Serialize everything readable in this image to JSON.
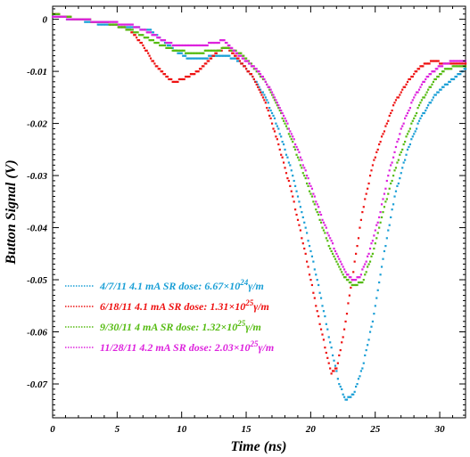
{
  "chart_data": {
    "type": "scatter",
    "title": "",
    "xlabel": "Time (ns)",
    "ylabel": "Button Signal (V)",
    "xlim": [
      0,
      32
    ],
    "ylim": [
      -0.0765,
      0.0025
    ],
    "x_ticks": [
      0,
      5,
      10,
      15,
      20,
      25,
      30
    ],
    "x_tick_labels": [
      "0",
      "5",
      "10",
      "15",
      "20",
      "25",
      "30"
    ],
    "y_ticks": [
      0,
      -0.01,
      -0.02,
      -0.03,
      -0.04,
      -0.05,
      -0.06,
      -0.07
    ],
    "y_tick_labels": [
      "0",
      "-0.01",
      "-0.02",
      "-0.03",
      "-0.04",
      "-0.05",
      "-0.06",
      "-0.07"
    ],
    "grid": false,
    "legend_position": "bottom-left",
    "series": [
      {
        "name": "4/7/11 4.1 mA  SR dose: 6.67×10^24 γ/m",
        "color": "#1a9fd6",
        "points": [
          [
            0,
            0.0005
          ],
          [
            2,
            0
          ],
          [
            4,
            -0.001
          ],
          [
            6,
            -0.0015
          ],
          [
            7.5,
            -0.002
          ],
          [
            8.5,
            -0.004
          ],
          [
            9.5,
            -0.006
          ],
          [
            10.5,
            -0.0075
          ],
          [
            11.5,
            -0.0075
          ],
          [
            12.5,
            -0.007
          ],
          [
            13.5,
            -0.007
          ],
          [
            14.5,
            -0.008
          ],
          [
            15.5,
            -0.011
          ],
          [
            16.5,
            -0.015
          ],
          [
            17.5,
            -0.021
          ],
          [
            18.5,
            -0.029
          ],
          [
            19.5,
            -0.039
          ],
          [
            20.5,
            -0.05
          ],
          [
            21.5,
            -0.062
          ],
          [
            22.2,
            -0.07
          ],
          [
            22.7,
            -0.073
          ],
          [
            23.3,
            -0.072
          ],
          [
            24,
            -0.067
          ],
          [
            24.8,
            -0.058
          ],
          [
            25.6,
            -0.046
          ],
          [
            26.5,
            -0.034
          ],
          [
            27.5,
            -0.025
          ],
          [
            28.5,
            -0.019
          ],
          [
            29.5,
            -0.015
          ],
          [
            30.5,
            -0.0125
          ],
          [
            31.5,
            -0.0105
          ],
          [
            32,
            -0.0095
          ]
        ]
      },
      {
        "name": "6/18/11 4.1 mA  SR dose: 1.31×10^25 γ/m",
        "color": "#ee1111",
        "points": [
          [
            0,
            0.001
          ],
          [
            2,
            0
          ],
          [
            4,
            -0.0005
          ],
          [
            6,
            -0.002
          ],
          [
            7,
            -0.005
          ],
          [
            8,
            -0.009
          ],
          [
            9,
            -0.0115
          ],
          [
            9.5,
            -0.012
          ],
          [
            10.5,
            -0.011
          ],
          [
            11.5,
            -0.0095
          ],
          [
            12.2,
            -0.0075
          ],
          [
            12.8,
            -0.006
          ],
          [
            13.5,
            -0.0055
          ],
          [
            14.5,
            -0.008
          ],
          [
            15.5,
            -0.011
          ],
          [
            16.5,
            -0.016
          ],
          [
            17.5,
            -0.024
          ],
          [
            18.5,
            -0.033
          ],
          [
            19.5,
            -0.044
          ],
          [
            20.5,
            -0.056
          ],
          [
            21.2,
            -0.064
          ],
          [
            21.6,
            -0.068
          ],
          [
            22,
            -0.067
          ],
          [
            22.5,
            -0.061
          ],
          [
            23.2,
            -0.05
          ],
          [
            24,
            -0.037
          ],
          [
            24.8,
            -0.028
          ],
          [
            25.6,
            -0.022
          ],
          [
            26.5,
            -0.016
          ],
          [
            27.5,
            -0.012
          ],
          [
            28.5,
            -0.009
          ],
          [
            29.5,
            -0.008
          ],
          [
            30.5,
            -0.0085
          ],
          [
            31.5,
            -0.0085
          ],
          [
            32,
            -0.0085
          ]
        ]
      },
      {
        "name": "9/30/11 4 mA  SR dose: 1.32×10^25 γ/m",
        "color": "#55bb11",
        "points": [
          [
            0,
            0.001
          ],
          [
            2,
            0
          ],
          [
            4,
            -0.0005
          ],
          [
            6,
            -0.002
          ],
          [
            8,
            -0.0045
          ],
          [
            9.5,
            -0.006
          ],
          [
            11,
            -0.0065
          ],
          [
            12.5,
            -0.006
          ],
          [
            13.5,
            -0.0055
          ],
          [
            14.5,
            -0.0065
          ],
          [
            15.5,
            -0.009
          ],
          [
            16.5,
            -0.012
          ],
          [
            17.5,
            -0.017
          ],
          [
            18.5,
            -0.023
          ],
          [
            19.5,
            -0.03
          ],
          [
            20.5,
            -0.037
          ],
          [
            21.5,
            -0.044
          ],
          [
            22.5,
            -0.049
          ],
          [
            23.3,
            -0.051
          ],
          [
            24,
            -0.0505
          ],
          [
            24.8,
            -0.045
          ],
          [
            25.6,
            -0.037
          ],
          [
            26.5,
            -0.029
          ],
          [
            27.5,
            -0.022
          ],
          [
            28.5,
            -0.016
          ],
          [
            29.5,
            -0.012
          ],
          [
            30.5,
            -0.0095
          ],
          [
            31.5,
            -0.009
          ],
          [
            32,
            -0.009
          ]
        ]
      },
      {
        "name": "11/28/11 4.2 mA  SR dose: 2.03×10^25 γ/m",
        "color": "#dd22dd",
        "points": [
          [
            0,
            0.0005
          ],
          [
            2,
            0
          ],
          [
            4,
            -0.0005
          ],
          [
            6,
            -0.001
          ],
          [
            7.5,
            -0.0025
          ],
          [
            8.5,
            -0.004
          ],
          [
            9.5,
            -0.005
          ],
          [
            10.5,
            -0.005
          ],
          [
            11.5,
            -0.005
          ],
          [
            12.5,
            -0.0045
          ],
          [
            13.3,
            -0.004
          ],
          [
            14,
            -0.006
          ],
          [
            15,
            -0.008
          ],
          [
            16,
            -0.01
          ],
          [
            17,
            -0.014
          ],
          [
            18,
            -0.019
          ],
          [
            19,
            -0.025
          ],
          [
            20,
            -0.032
          ],
          [
            21,
            -0.039
          ],
          [
            22,
            -0.045
          ],
          [
            22.8,
            -0.049
          ],
          [
            23.3,
            -0.05
          ],
          [
            23.8,
            -0.0495
          ],
          [
            24.5,
            -0.045
          ],
          [
            25.3,
            -0.038
          ],
          [
            26,
            -0.03
          ],
          [
            27,
            -0.021
          ],
          [
            28,
            -0.015
          ],
          [
            29,
            -0.011
          ],
          [
            30,
            -0.009
          ],
          [
            31,
            -0.008
          ],
          [
            32,
            -0.008
          ]
        ]
      }
    ],
    "legend": [
      {
        "date": "4/7/11",
        "current": "4.1 mA",
        "dose_mantissa": "6.67",
        "dose_exp": "24"
      },
      {
        "date": "6/18/11",
        "current": "4.1 mA",
        "dose_mantissa": "1.31",
        "dose_exp": "25"
      },
      {
        "date": "9/30/11",
        "current": "4 mA",
        "dose_mantissa": "1.32",
        "dose_exp": "25"
      },
      {
        "date": "11/28/11",
        "current": "4.2 mA",
        "dose_mantissa": "2.03",
        "dose_exp": "25"
      }
    ],
    "legend_dose_label": "SR dose:",
    "legend_times": "×10",
    "legend_unit": "γ/m"
  }
}
